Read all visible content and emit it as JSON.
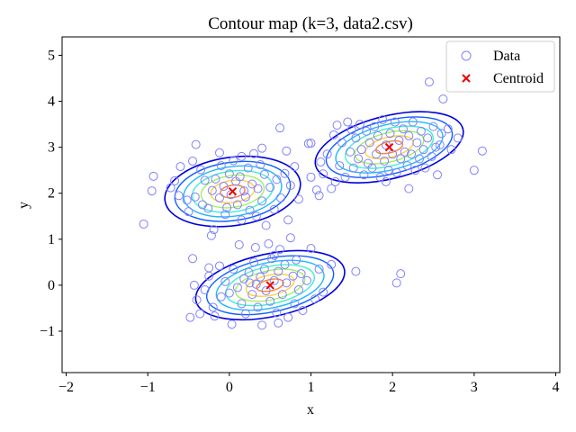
{
  "chart_data": {
    "type": "scatter",
    "title": "Contour map (k=3, data2.csv)",
    "xlabel": "x",
    "ylabel": "y",
    "xlim": [
      -2.05,
      4.05
    ],
    "ylim": [
      -1.9,
      5.4
    ],
    "xticks": [
      -2,
      -1,
      0,
      1,
      2,
      3,
      4
    ],
    "yticks": [
      -1,
      0,
      1,
      2,
      3,
      4,
      5
    ],
    "xtick_labels": [
      "−2",
      "−1",
      "0",
      "1",
      "2",
      "3",
      "4"
    ],
    "ytick_labels": [
      "−1",
      "0",
      "1",
      "2",
      "3",
      "4",
      "5"
    ],
    "legend_position": "top-right",
    "grid": false,
    "series": [
      {
        "name": "Data",
        "marker": "open-circle",
        "color": "#8080ff",
        "points": [
          [
            -1.05,
            1.33
          ],
          [
            -0.93,
            2.37
          ],
          [
            -0.95,
            2.05
          ],
          [
            -0.72,
            2.12
          ],
          [
            -0.67,
            2.27
          ],
          [
            -0.6,
            2.58
          ],
          [
            -0.52,
            1.85
          ],
          [
            -0.5,
            1.6
          ],
          [
            -0.42,
            1.92
          ],
          [
            -0.41,
            3.06
          ],
          [
            -0.35,
            2.51
          ],
          [
            -0.33,
            1.75
          ],
          [
            -0.3,
            2.28
          ],
          [
            -0.26,
            1.67
          ],
          [
            -0.22,
            1.08
          ],
          [
            -0.21,
            2.06
          ],
          [
            -0.19,
            1.21
          ],
          [
            -0.17,
            2.31
          ],
          [
            -0.12,
            1.9
          ],
          [
            -0.1,
            2.6
          ],
          [
            -0.07,
            2.15
          ],
          [
            -0.05,
            1.54
          ],
          [
            -0.03,
            1.69
          ],
          [
            0.0,
            2.42
          ],
          [
            0.02,
            1.97
          ],
          [
            0.05,
            2.71
          ],
          [
            0.08,
            2.26
          ],
          [
            0.1,
            1.75
          ],
          [
            0.13,
            2.36
          ],
          [
            0.15,
            1.42
          ],
          [
            0.18,
            2.05
          ],
          [
            0.2,
            1.92
          ],
          [
            0.23,
            2.55
          ],
          [
            0.25,
            1.63
          ],
          [
            0.28,
            2.2
          ],
          [
            0.3,
            2.86
          ],
          [
            0.33,
            1.5
          ],
          [
            0.35,
            2.1
          ],
          [
            0.38,
            2.62
          ],
          [
            0.4,
            1.83
          ],
          [
            0.43,
            2.41
          ],
          [
            0.45,
            1.3
          ],
          [
            0.5,
            2.13
          ],
          [
            0.55,
            1.65
          ],
          [
            0.58,
            2.3
          ],
          [
            0.63,
            1.9
          ],
          [
            0.68,
            2.43
          ],
          [
            0.72,
            1.42
          ],
          [
            0.75,
            2.17
          ],
          [
            0.8,
            2.58
          ],
          [
            0.85,
            1.87
          ],
          [
            0.7,
            2.92
          ],
          [
            0.62,
            3.42
          ],
          [
            0.97,
            3.08
          ],
          [
            1.07,
            2.07
          ],
          [
            1.1,
            1.95
          ],
          [
            1.0,
            2.35
          ],
          [
            -0.62,
            1.95
          ],
          [
            -0.45,
            2.7
          ],
          [
            -0.12,
            2.88
          ],
          [
            0.15,
            2.8
          ],
          [
            0.4,
            2.98
          ],
          [
            -0.48,
            -0.7
          ],
          [
            -0.45,
            0.58
          ],
          [
            -0.43,
            0.0
          ],
          [
            -0.4,
            -0.32
          ],
          [
            -0.36,
            -0.62
          ],
          [
            -0.3,
            -0.1
          ],
          [
            -0.25,
            0.2
          ],
          [
            -0.2,
            -0.48
          ],
          [
            -0.18,
            -0.67
          ],
          [
            -0.12,
            0.42
          ],
          [
            -0.1,
            -0.25
          ],
          [
            -0.05,
            0.08
          ],
          [
            0.0,
            -0.17
          ],
          [
            0.03,
            -0.85
          ],
          [
            0.05,
            0.35
          ],
          [
            0.1,
            -0.05
          ],
          [
            0.12,
            0.88
          ],
          [
            0.15,
            -0.4
          ],
          [
            0.18,
            0.14
          ],
          [
            0.2,
            -0.62
          ],
          [
            0.24,
            0.28
          ],
          [
            0.28,
            -0.2
          ],
          [
            0.3,
            0.5
          ],
          [
            0.33,
            0.02
          ],
          [
            0.35,
            -0.48
          ],
          [
            0.38,
            0.18
          ],
          [
            0.4,
            -0.87
          ],
          [
            0.43,
            0.35
          ],
          [
            0.45,
            -0.12
          ],
          [
            0.48,
            0.9
          ],
          [
            0.5,
            -0.35
          ],
          [
            0.52,
            0.58
          ],
          [
            0.55,
            0.1
          ],
          [
            0.58,
            -0.6
          ],
          [
            0.6,
            0.3
          ],
          [
            0.62,
            0.78
          ],
          [
            0.65,
            -0.2
          ],
          [
            0.68,
            0.45
          ],
          [
            0.7,
            0.05
          ],
          [
            0.72,
            -0.7
          ],
          [
            0.75,
            1.03
          ],
          [
            0.78,
            0.2
          ],
          [
            0.8,
            -0.4
          ],
          [
            0.82,
            0.55
          ],
          [
            0.85,
            -0.1
          ],
          [
            0.88,
            0.25
          ],
          [
            0.9,
            -0.55
          ],
          [
            0.95,
            0.1
          ],
          [
            1.0,
            0.8
          ],
          [
            1.05,
            -0.3
          ],
          [
            1.1,
            0.35
          ],
          [
            1.15,
            -0.15
          ],
          [
            1.25,
            0.45
          ],
          [
            0.32,
            0.82
          ],
          [
            0.6,
            -0.82
          ],
          [
            -0.25,
            0.38
          ],
          [
            0.55,
            0.65
          ],
          [
            0.25,
            0.05
          ],
          [
            1.0,
            3.09
          ],
          [
            1.12,
            2.68
          ],
          [
            1.15,
            2.42
          ],
          [
            1.2,
            2.85
          ],
          [
            1.25,
            2.1
          ],
          [
            1.28,
            3.27
          ],
          [
            1.3,
            2.25
          ],
          [
            1.32,
            3.48
          ],
          [
            1.35,
            2.6
          ],
          [
            1.38,
            3.1
          ],
          [
            1.42,
            2.35
          ],
          [
            1.45,
            3.55
          ],
          [
            1.48,
            2.9
          ],
          [
            1.5,
            3.38
          ],
          [
            1.52,
            2.55
          ],
          [
            1.55,
            3.2
          ],
          [
            1.58,
            2.75
          ],
          [
            1.6,
            3.5
          ],
          [
            1.62,
            2.95
          ],
          [
            1.65,
            2.4
          ],
          [
            1.68,
            3.35
          ],
          [
            1.7,
            2.65
          ],
          [
            1.72,
            3.1
          ],
          [
            1.75,
            2.55
          ],
          [
            1.78,
            3.45
          ],
          [
            1.8,
            2.85
          ],
          [
            1.82,
            3.25
          ],
          [
            1.85,
            2.35
          ],
          [
            1.88,
            3.6
          ],
          [
            1.9,
            2.7
          ],
          [
            1.92,
            3.05
          ],
          [
            1.95,
            2.5
          ],
          [
            1.97,
            3.3
          ],
          [
            2.0,
            2.85
          ],
          [
            2.03,
            3.55
          ],
          [
            2.05,
            2.45
          ],
          [
            2.08,
            3.15
          ],
          [
            2.1,
            2.75
          ],
          [
            2.13,
            3.4
          ],
          [
            2.15,
            2.9
          ],
          [
            2.18,
            2.6
          ],
          [
            2.2,
            3.25
          ],
          [
            2.23,
            2.85
          ],
          [
            2.25,
            3.55
          ],
          [
            2.28,
            2.5
          ],
          [
            2.3,
            3.1
          ],
          [
            2.33,
            2.75
          ],
          [
            2.35,
            3.35
          ],
          [
            2.38,
            2.95
          ],
          [
            2.4,
            2.55
          ],
          [
            2.43,
            3.2
          ],
          [
            2.45,
            4.42
          ],
          [
            2.48,
            2.8
          ],
          [
            2.5,
            3.45
          ],
          [
            2.53,
            3.0
          ],
          [
            2.55,
            2.4
          ],
          [
            2.6,
            3.3
          ],
          [
            2.62,
            4.05
          ],
          [
            2.68,
            3.4
          ],
          [
            2.72,
            2.95
          ],
          [
            2.8,
            3.2
          ],
          [
            3.0,
            2.5
          ],
          [
            3.1,
            2.92
          ],
          [
            2.58,
            3.05
          ],
          [
            2.2,
            2.1
          ],
          [
            1.55,
            0.3
          ],
          [
            2.05,
            0.05
          ],
          [
            2.1,
            0.25
          ],
          [
            1.92,
            2.25
          ]
        ]
      },
      {
        "name": "Centroid",
        "marker": "x",
        "color": "#ee0000",
        "points": [
          [
            0.04,
            2.04
          ],
          [
            0.5,
            0.0
          ],
          [
            1.96,
            3.0
          ]
        ]
      }
    ],
    "contours": {
      "level_colors": [
        "#0000dd",
        "#1060ff",
        "#20b8ff",
        "#40f0d0",
        "#a0f060",
        "#ffd040",
        "#ff8030"
      ],
      "clusters": [
        {
          "center": [
            0.04,
            2.04
          ],
          "sx": 0.54,
          "sy": 0.48,
          "rot_deg": 8
        },
        {
          "center": [
            0.5,
            0.0
          ],
          "sx": 0.6,
          "sy": 0.44,
          "rot_deg": 12
        },
        {
          "center": [
            1.96,
            3.0
          ],
          "sx": 0.6,
          "sy": 0.44,
          "rot_deg": 14
        }
      ],
      "level_scales": [
        1.55,
        1.32,
        1.12,
        0.92,
        0.72,
        0.5,
        0.28
      ]
    }
  }
}
